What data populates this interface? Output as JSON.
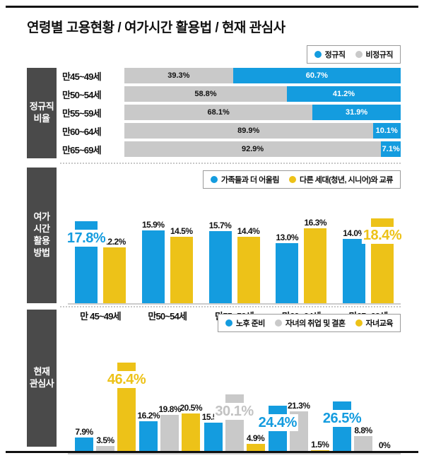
{
  "title": "연령별 고용현황 / 여가시간 활용법 / 현재 관심사",
  "colors": {
    "blue": "#149CDF",
    "gray": "#C9C9C9",
    "yellow": "#EDC218",
    "sidebar": "#4A4A4A",
    "gray_text": "#C2C2C2"
  },
  "sections": {
    "employment": {
      "side_label": "정규직\n비율"
    },
    "leisure": {
      "side_label": "여가\n시간\n활용\n방법"
    },
    "interest": {
      "side_label": "현재\n관심사"
    }
  },
  "chart_data": [
    {
      "type": "bar",
      "orientation": "horizontal-stacked",
      "title": "정규직 비율",
      "legend": [
        {
          "label": "정규직",
          "color": "blue"
        },
        {
          "label": "비정규직",
          "color": "gray"
        }
      ],
      "categories": [
        "만45~49세",
        "만50~54세",
        "만55~59세",
        "만60~64세",
        "만65~69세"
      ],
      "series": [
        {
          "name": "비정규직",
          "color": "gray",
          "values": [
            39.3,
            58.8,
            68.1,
            89.9,
            92.9
          ]
        },
        {
          "name": "정규직",
          "color": "blue",
          "values": [
            60.7,
            41.2,
            31.9,
            10.1,
            7.1
          ]
        }
      ],
      "value_unit": "%",
      "xlim": [
        0,
        100
      ]
    },
    {
      "type": "bar",
      "orientation": "vertical-grouped",
      "title": "여가시간 활용방법",
      "legend": [
        {
          "label": "가족들과 더 어울림",
          "color": "blue"
        },
        {
          "label": "다른 세대(청년, 시니어)와 교류",
          "color": "yellow"
        }
      ],
      "categories": [
        "만 45~49세",
        "만50~54세",
        "만55~59세",
        "만60~64세",
        "만65~69세"
      ],
      "series": [
        {
          "name": "가족들과 더 어울림",
          "color": "blue",
          "values": [
            17.8,
            15.9,
            15.7,
            13.0,
            14.0
          ]
        },
        {
          "name": "다른 세대(청년, 시니어)와 교류",
          "color": "yellow",
          "values": [
            12.2,
            14.5,
            14.4,
            16.3,
            18.4
          ]
        }
      ],
      "value_unit": "%",
      "highlights": [
        {
          "group": 0,
          "series": 0
        },
        {
          "group": 4,
          "series": 1
        }
      ]
    },
    {
      "type": "bar",
      "orientation": "vertical-grouped",
      "title": "현재 관심사",
      "legend": [
        {
          "label": "노후 준비",
          "color": "blue"
        },
        {
          "label": "자녀의 취업 및 결혼",
          "color": "gray"
        },
        {
          "label": "자녀교육",
          "color": "yellow"
        }
      ],
      "categories": [
        "만 45~49세",
        "만50~54세",
        "만55~59세",
        "만60~64세",
        "만65~69세"
      ],
      "series": [
        {
          "name": "노후 준비",
          "color": "blue",
          "values": [
            7.9,
            16.2,
            15.5,
            24.4,
            26.5
          ]
        },
        {
          "name": "자녀의 취업 및 결혼",
          "color": "gray",
          "values": [
            3.5,
            19.8,
            30.1,
            21.3,
            8.8
          ]
        },
        {
          "name": "자녀교육",
          "color": "yellow",
          "values": [
            46.4,
            20.5,
            4.9,
            1.5,
            0
          ]
        }
      ],
      "value_unit": "%",
      "highlights": [
        {
          "group": 0,
          "series": 2
        },
        {
          "group": 2,
          "series": 1
        },
        {
          "group": 3,
          "series": 0
        },
        {
          "group": 4,
          "series": 0
        }
      ]
    }
  ]
}
